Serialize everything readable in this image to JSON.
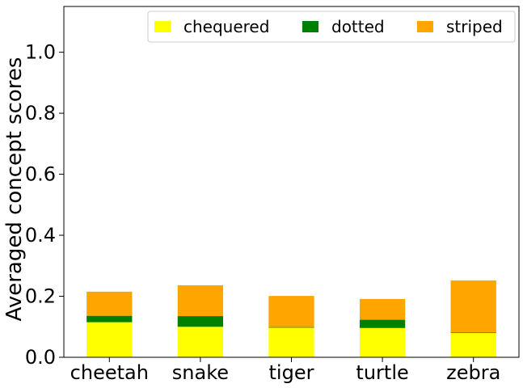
{
  "chart_data": {
    "type": "bar",
    "stacked": true,
    "title": "",
    "xlabel": "",
    "ylabel": "Averaged concept scores",
    "ylim": [
      0,
      1.15
    ],
    "yticks": [
      "0.0",
      "0.2",
      "0.4",
      "0.6",
      "0.8",
      "1.0"
    ],
    "categories": [
      "cheetah",
      "snake",
      "tiger",
      "turtle",
      "zebra"
    ],
    "series": [
      {
        "name": "chequered",
        "color": "#ffff00",
        "values": [
          0.115,
          0.1,
          0.097,
          0.096,
          0.08
        ]
      },
      {
        "name": "dotted",
        "color": "#008000",
        "values": [
          0.021,
          0.035,
          0.002,
          0.027,
          0.002
        ]
      },
      {
        "name": "striped",
        "color": "#ffa500",
        "values": [
          0.079,
          0.101,
          0.102,
          0.068,
          0.17
        ]
      }
    ],
    "grid": false,
    "legend": {
      "position": "top-right",
      "columns": 3
    }
  }
}
